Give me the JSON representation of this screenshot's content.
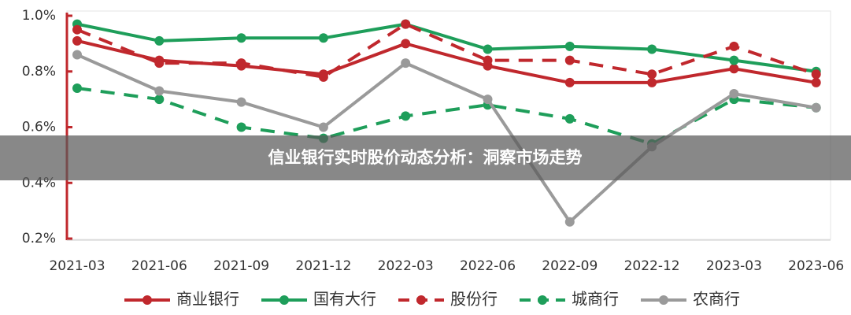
{
  "chart_data": {
    "type": "line",
    "categories": [
      "2021-03",
      "2021-06",
      "2021-09",
      "2021-12",
      "2022-03",
      "2022-06",
      "2022-09",
      "2022-12",
      "2023-03",
      "2023-06"
    ],
    "series": [
      {
        "name": "商业银行",
        "color": "#c0282d",
        "line_style": "solid",
        "values": [
          0.91,
          0.84,
          0.82,
          0.79,
          0.9,
          0.82,
          0.76,
          0.76,
          0.81,
          0.76
        ]
      },
      {
        "name": "国有大行",
        "color": "#1e9e5a",
        "line_style": "solid",
        "values": [
          0.97,
          0.91,
          0.92,
          0.92,
          0.97,
          0.88,
          0.89,
          0.88,
          0.84,
          0.8
        ]
      },
      {
        "name": "股份行",
        "color": "#c0282d",
        "line_style": "dashed",
        "values": [
          0.95,
          0.83,
          0.83,
          0.78,
          0.97,
          0.84,
          0.84,
          0.79,
          0.89,
          0.79
        ]
      },
      {
        "name": "城商行",
        "color": "#1e9e5a",
        "line_style": "dashed",
        "values": [
          0.74,
          0.7,
          0.6,
          0.56,
          0.64,
          0.68,
          0.63,
          0.54,
          0.7,
          0.67
        ]
      },
      {
        "name": "农商行",
        "color": "#9a9a9a",
        "line_style": "solid",
        "values": [
          0.86,
          0.73,
          0.69,
          0.6,
          0.83,
          0.7,
          0.26,
          0.53,
          0.72,
          0.67
        ]
      }
    ],
    "ylim": [
      0.2,
      1.0
    ],
    "yticks": [
      {
        "value": 0.2,
        "label": "0.2%"
      },
      {
        "value": 0.4,
        "label": "0.4%"
      },
      {
        "value": 0.6,
        "label": "0.6%"
      },
      {
        "value": 0.8,
        "label": "0.8%"
      },
      {
        "value": 1.0,
        "label": "1.0%"
      }
    ],
    "axis_color": "#c0282d",
    "legend": "bottom"
  },
  "banner": {
    "title": "信业银行实时股价动态分析：洞察市场走势"
  }
}
